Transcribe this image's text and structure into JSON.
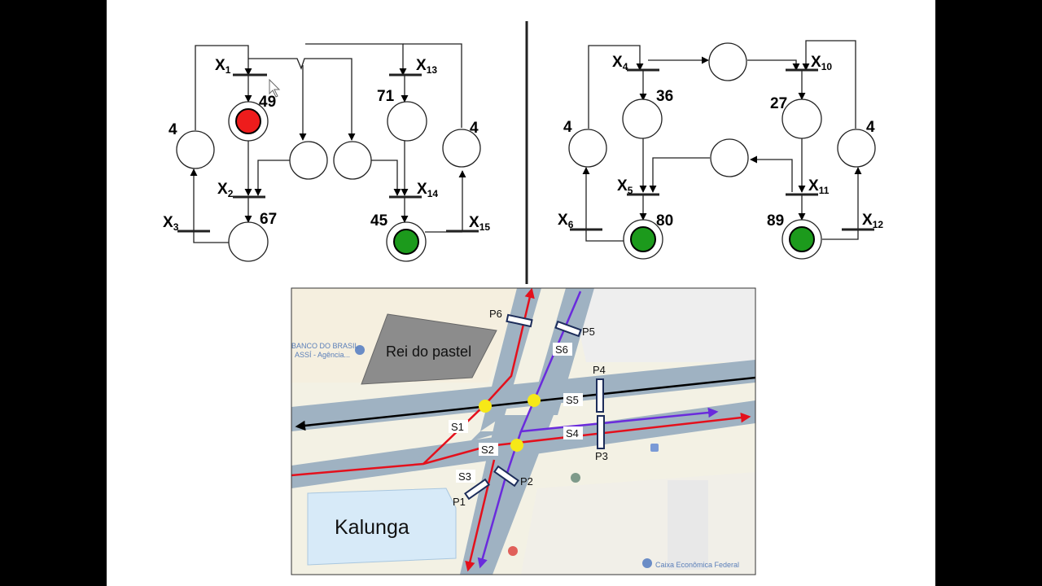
{
  "colors": {
    "frame_bg": "#000000",
    "slide_bg": "#ffffff",
    "red_token": "#ee1c1c",
    "green_token": "#1c9a1c",
    "road": "#9fb2c2",
    "map_bg": "#f3f1e4",
    "red_path": "#e4101c",
    "purple_path": "#6a2bdc",
    "black_path": "#000000",
    "junction": "#f6e817",
    "building": "#8c8c8c",
    "kalunga_fill": "#d7eaf8"
  },
  "left_net": {
    "transitions": [
      {
        "main": "X",
        "sub": "1"
      },
      {
        "main": "X",
        "sub": "2"
      },
      {
        "main": "X",
        "sub": "3"
      },
      {
        "main": "X",
        "sub": "13"
      },
      {
        "main": "X",
        "sub": "14"
      },
      {
        "main": "X",
        "sub": "15"
      }
    ],
    "numbers": [
      "4",
      "49",
      "67",
      "71",
      "4",
      "45"
    ]
  },
  "right_net": {
    "transitions": [
      {
        "main": "X",
        "sub": "4"
      },
      {
        "main": "X",
        "sub": "5"
      },
      {
        "main": "X",
        "sub": "6"
      },
      {
        "main": "X",
        "sub": "10"
      },
      {
        "main": "X",
        "sub": "11"
      },
      {
        "main": "X",
        "sub": "12"
      }
    ],
    "numbers": [
      "4",
      "36",
      "80",
      "27",
      "89",
      "4"
    ]
  },
  "map": {
    "poles": [
      "P6",
      "P5",
      "P4",
      "P3",
      "P2",
      "P1"
    ],
    "signals": [
      "S6",
      "S5",
      "S4",
      "S2",
      "S1",
      "S3"
    ],
    "buildings": [
      "Rei do pastel",
      "Kalunga"
    ],
    "poi_banco": [
      "BANCO DO BRASIL",
      "ASSÍ - Agência..."
    ],
    "poi_caixa": "Caixa Econômica Federal"
  }
}
